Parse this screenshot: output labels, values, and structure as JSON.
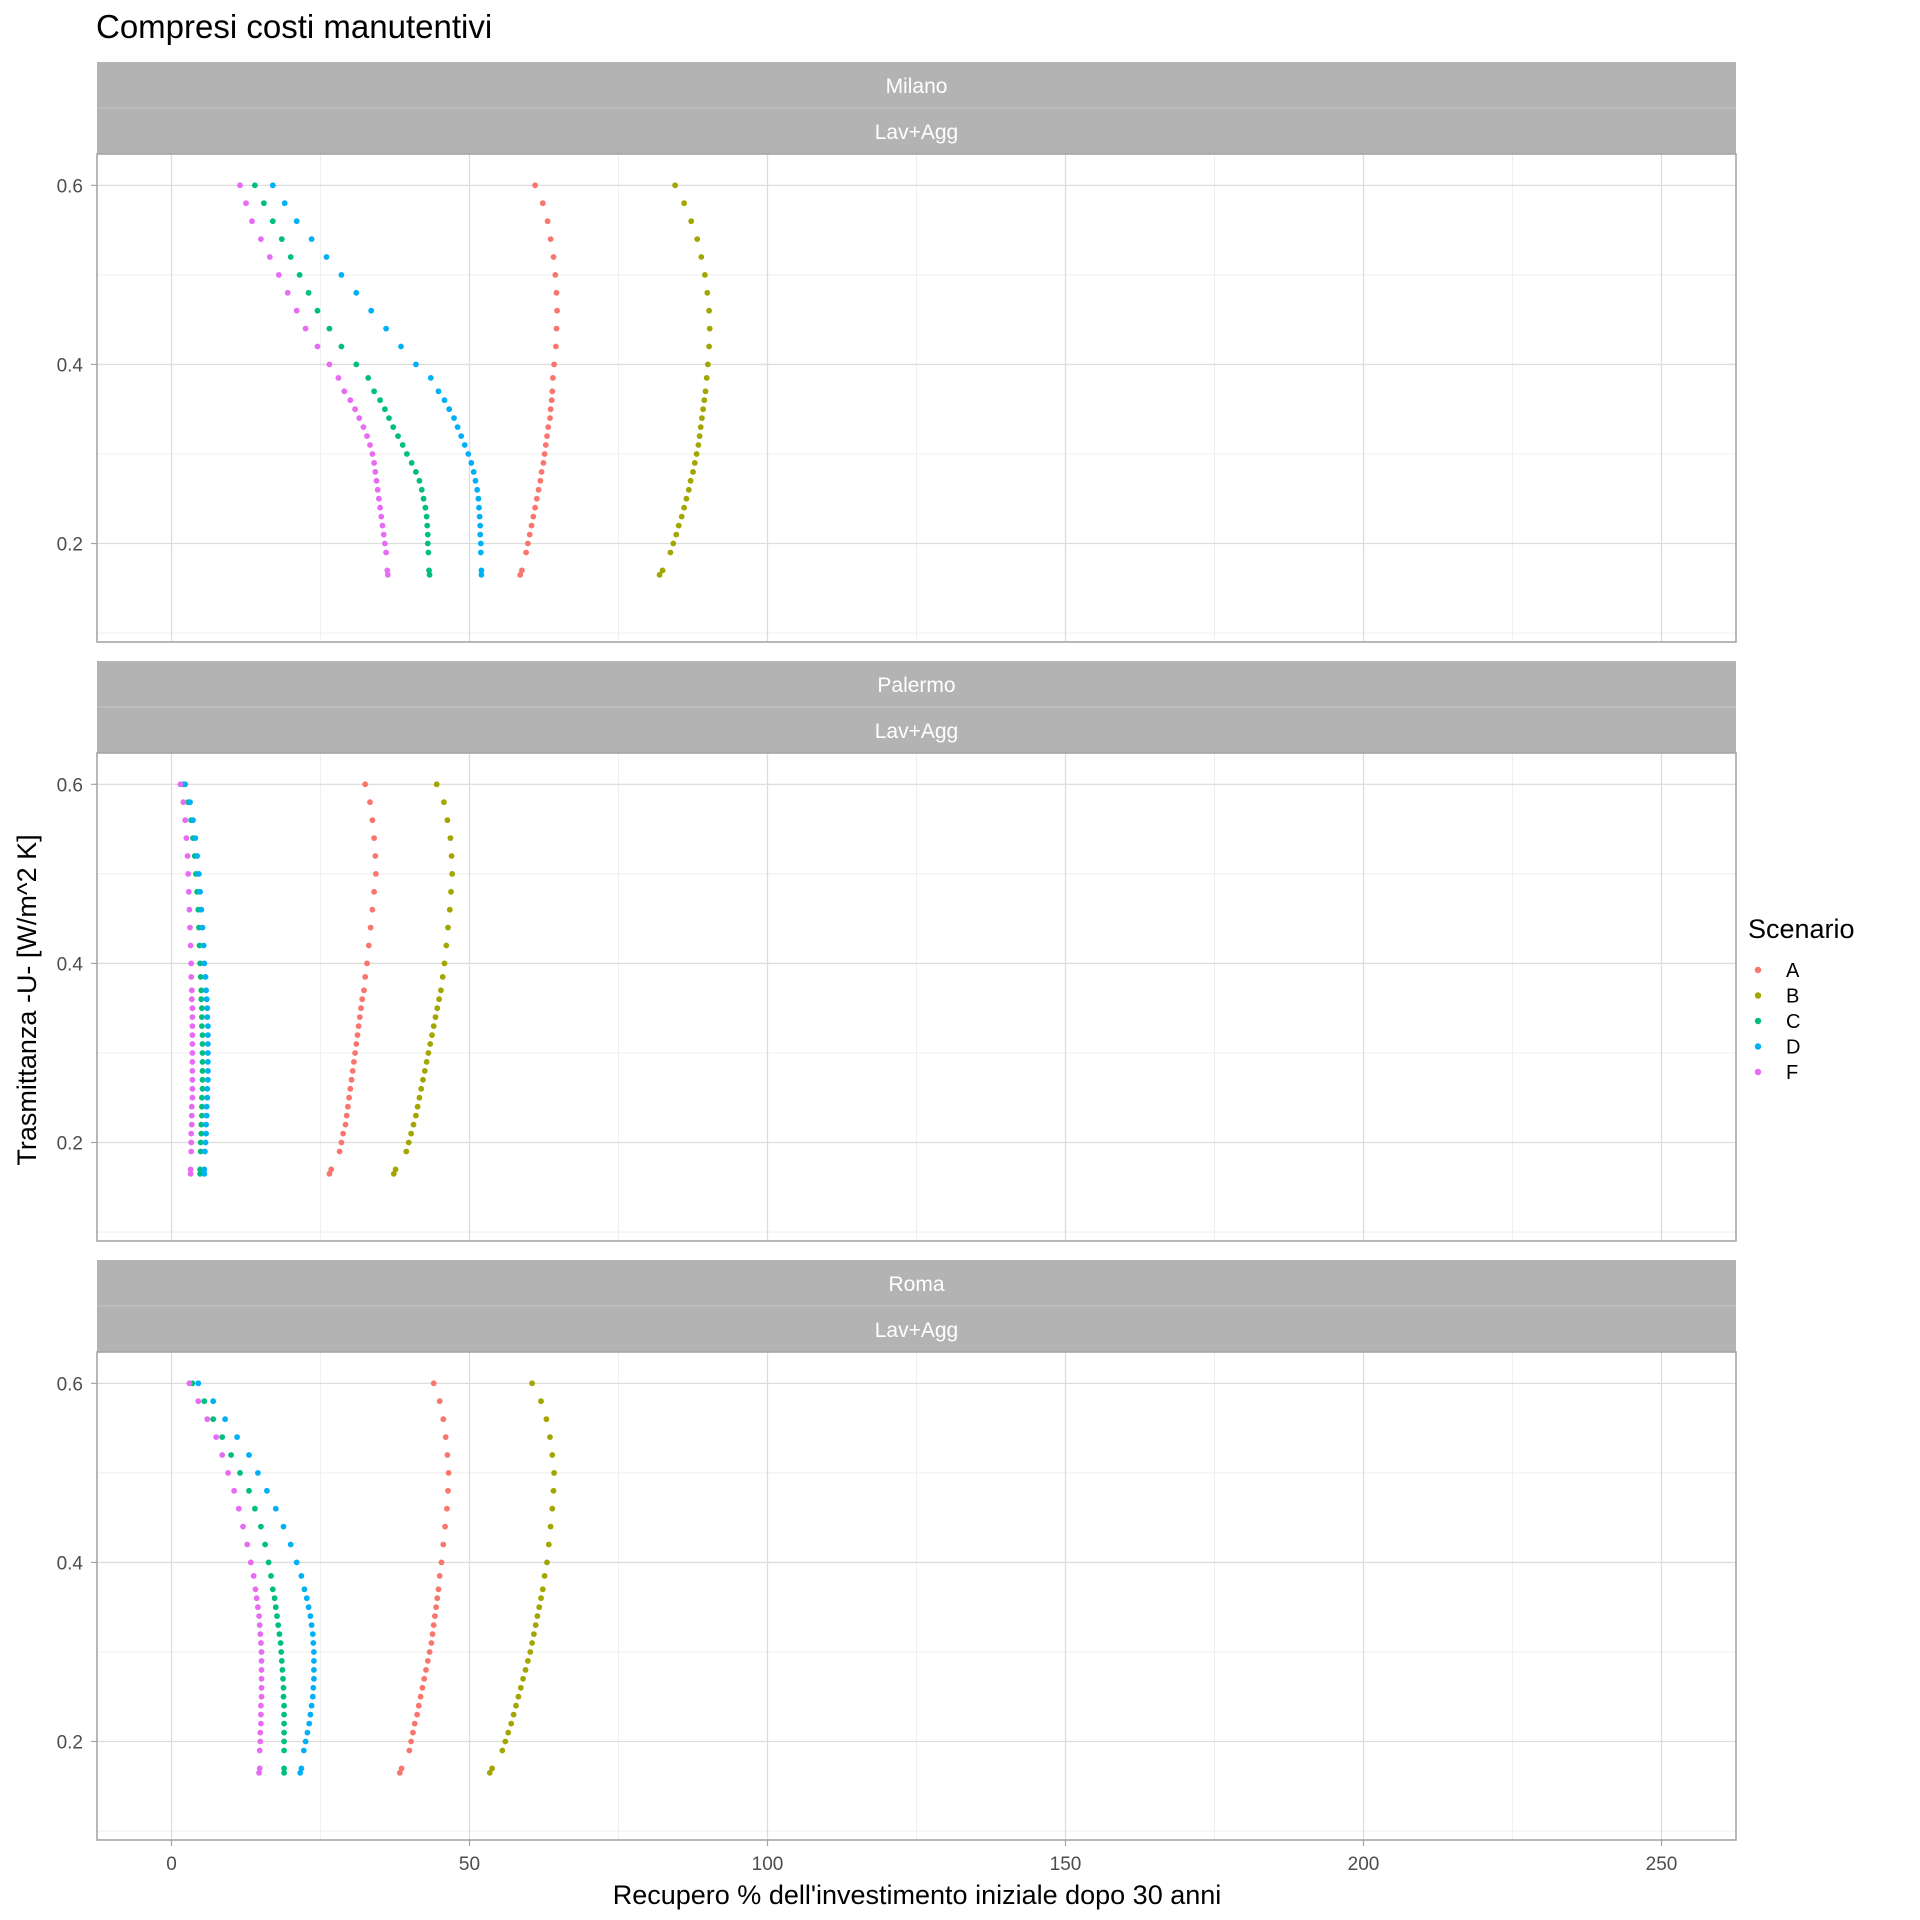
{
  "chart_data": {
    "type": "scatter",
    "title": "Compresi costi manutentivi",
    "xlabel": "Recupero % dell'investimento iniziale dopo 30 anni",
    "ylabel": "Trasmittanza -U- [W/m^2 K]",
    "xlim": [
      -12.5,
      262.5
    ],
    "ylim": [
      0.09,
      0.635
    ],
    "x_ticks": [
      0,
      50,
      100,
      150,
      200,
      250
    ],
    "x_tick_labels": [
      "0",
      "50",
      "100",
      "150",
      "200",
      "250"
    ],
    "y_ticks": [
      0.2,
      0.4,
      0.6
    ],
    "y_tick_labels": [
      "0.2",
      "0.4",
      "0.6"
    ],
    "grid": true,
    "facet_row_label": "Lav+Agg",
    "legend": {
      "title": "Scenario",
      "position": "right",
      "entries": [
        {
          "label": "A",
          "color": "#F8766D"
        },
        {
          "label": "B",
          "color": "#A3A500"
        },
        {
          "label": "C",
          "color": "#00BF7D"
        },
        {
          "label": "D",
          "color": "#00B0F6"
        },
        {
          "label": "F",
          "color": "#E76BF3"
        }
      ]
    },
    "u_values": [
      0.6,
      0.58,
      0.56,
      0.54,
      0.52,
      0.5,
      0.48,
      0.46,
      0.44,
      0.42,
      0.4,
      0.385,
      0.37,
      0.36,
      0.35,
      0.34,
      0.33,
      0.32,
      0.31,
      0.3,
      0.29,
      0.28,
      0.27,
      0.26,
      0.25,
      0.24,
      0.23,
      0.22,
      0.21,
      0.2,
      0.19,
      0.17,
      0.165
    ],
    "panels": [
      {
        "name": "Milano",
        "sub": "Lav+Agg",
        "series": [
          {
            "name": "A",
            "x": [
              61.0,
              62.3,
              63.1,
              63.6,
              64.1,
              64.4,
              64.6,
              64.7,
              64.6,
              64.5,
              64.2,
              64.0,
              63.9,
              63.8,
              63.6,
              63.5,
              63.2,
              63.0,
              62.8,
              62.6,
              62.4,
              62.1,
              61.9,
              61.6,
              61.3,
              61.0,
              60.7,
              60.4,
              60.1,
              59.8,
              59.5,
              58.8,
              58.5
            ]
          },
          {
            "name": "B",
            "x": [
              84.5,
              86.0,
              87.2,
              88.2,
              88.9,
              89.5,
              89.9,
              90.2,
              90.3,
              90.2,
              90.0,
              89.8,
              89.6,
              89.4,
              89.2,
              89.0,
              88.8,
              88.6,
              88.4,
              88.1,
              87.8,
              87.5,
              87.1,
              86.8,
              86.4,
              86.0,
              85.6,
              85.1,
              84.7,
              84.2,
              83.7,
              82.4,
              81.9
            ]
          },
          {
            "name": "C",
            "x": [
              14.0,
              15.5,
              17.0,
              18.5,
              20.0,
              21.5,
              23.0,
              24.5,
              26.5,
              28.5,
              31.0,
              33.0,
              34.0,
              35.0,
              35.8,
              36.5,
              37.2,
              38.0,
              38.8,
              39.5,
              40.3,
              41.0,
              41.6,
              42.0,
              42.3,
              42.6,
              42.8,
              42.9,
              43.0,
              43.0,
              43.1,
              43.2,
              43.3
            ]
          },
          {
            "name": "D",
            "x": [
              17.0,
              19.0,
              21.0,
              23.5,
              26.0,
              28.5,
              31.0,
              33.5,
              36.0,
              38.5,
              41.0,
              43.5,
              44.8,
              45.8,
              46.6,
              47.4,
              48.0,
              48.6,
              49.2,
              49.8,
              50.3,
              50.7,
              51.0,
              51.3,
              51.5,
              51.6,
              51.7,
              51.8,
              51.8,
              51.9,
              51.9,
              52.0,
              52.0
            ]
          },
          {
            "name": "F",
            "x": [
              11.5,
              12.5,
              13.5,
              15.0,
              16.5,
              18.0,
              19.5,
              21.0,
              22.5,
              24.5,
              26.5,
              28.0,
              29.0,
              30.0,
              30.8,
              31.5,
              32.2,
              32.8,
              33.3,
              33.7,
              34.0,
              34.2,
              34.4,
              34.6,
              34.8,
              35.0,
              35.2,
              35.4,
              35.6,
              35.8,
              36.0,
              36.2,
              36.3
            ]
          }
        ]
      },
      {
        "name": "Palermo",
        "sub": "Lav+Agg",
        "series": [
          {
            "name": "A",
            "x": [
              32.5,
              33.3,
              33.7,
              34.0,
              34.2,
              34.3,
              34.0,
              33.7,
              33.4,
              33.1,
              32.8,
              32.5,
              32.3,
              32.0,
              31.8,
              31.6,
              31.4,
              31.2,
              31.0,
              30.8,
              30.6,
              30.4,
              30.2,
              30.0,
              29.8,
              29.6,
              29.4,
              29.2,
              28.8,
              28.5,
              28.2,
              26.8,
              26.5
            ]
          },
          {
            "name": "B",
            "x": [
              44.5,
              45.7,
              46.3,
              46.8,
              47.0,
              47.1,
              46.9,
              46.7,
              46.4,
              46.1,
              45.8,
              45.5,
              45.2,
              44.9,
              44.6,
              44.3,
              44.0,
              43.7,
              43.4,
              43.1,
              42.8,
              42.5,
              42.2,
              41.9,
              41.6,
              41.3,
              41.0,
              40.6,
              40.2,
              39.8,
              39.4,
              37.6,
              37.3
            ]
          },
          {
            "name": "C",
            "x": [
              2.0,
              2.8,
              3.3,
              3.6,
              3.9,
              4.1,
              4.3,
              4.5,
              4.6,
              4.7,
              4.8,
              4.9,
              5.0,
              5.0,
              5.1,
              5.1,
              5.1,
              5.2,
              5.2,
              5.2,
              5.2,
              5.2,
              5.2,
              5.2,
              5.1,
              5.1,
              5.1,
              5.0,
              5.0,
              4.9,
              4.9,
              4.8,
              4.8
            ]
          },
          {
            "name": "D",
            "x": [
              2.3,
              3.1,
              3.6,
              4.0,
              4.3,
              4.6,
              4.8,
              5.0,
              5.2,
              5.4,
              5.5,
              5.7,
              5.8,
              5.9,
              6.0,
              6.0,
              6.1,
              6.1,
              6.1,
              6.1,
              6.1,
              6.1,
              6.1,
              6.0,
              6.0,
              5.9,
              5.9,
              5.8,
              5.8,
              5.7,
              5.6,
              5.5,
              5.5
            ]
          },
          {
            "name": "F",
            "x": [
              1.5,
              2.0,
              2.3,
              2.5,
              2.7,
              2.8,
              2.9,
              3.0,
              3.1,
              3.2,
              3.3,
              3.3,
              3.4,
              3.4,
              3.5,
              3.5,
              3.5,
              3.5,
              3.5,
              3.5,
              3.5,
              3.5,
              3.5,
              3.5,
              3.5,
              3.4,
              3.4,
              3.4,
              3.3,
              3.3,
              3.3,
              3.2,
              3.2
            ]
          }
        ]
      },
      {
        "name": "Roma",
        "sub": "Lav+Agg",
        "series": [
          {
            "name": "A",
            "x": [
              44.0,
              45.0,
              45.6,
              46.0,
              46.3,
              46.5,
              46.4,
              46.2,
              45.9,
              45.6,
              45.3,
              45.0,
              44.8,
              44.6,
              44.4,
              44.2,
              44.0,
              43.8,
              43.6,
              43.3,
              43.0,
              42.7,
              42.4,
              42.1,
              41.8,
              41.5,
              41.2,
              40.8,
              40.5,
              40.2,
              39.9,
              38.6,
              38.3
            ]
          },
          {
            "name": "B",
            "x": [
              60.5,
              62.0,
              62.9,
              63.5,
              63.9,
              64.2,
              64.1,
              63.9,
              63.6,
              63.3,
              63.0,
              62.6,
              62.3,
              62.0,
              61.7,
              61.4,
              61.1,
              60.8,
              60.5,
              60.2,
              59.8,
              59.4,
              59.0,
              58.6,
              58.2,
              57.8,
              57.4,
              57.0,
              56.5,
              56.0,
              55.5,
              53.8,
              53.4
            ]
          },
          {
            "name": "C",
            "x": [
              3.5,
              5.5,
              7.0,
              8.5,
              10.0,
              11.5,
              13.0,
              14.0,
              15.0,
              15.7,
              16.3,
              16.7,
              17.0,
              17.3,
              17.5,
              17.7,
              17.9,
              18.1,
              18.3,
              18.4,
              18.5,
              18.6,
              18.7,
              18.8,
              18.8,
              18.9,
              18.9,
              18.9,
              18.9,
              18.9,
              18.9,
              18.9,
              18.9
            ]
          },
          {
            "name": "D",
            "x": [
              4.5,
              7.0,
              9.0,
              11.0,
              13.0,
              14.5,
              16.0,
              17.5,
              18.8,
              20.0,
              21.0,
              21.8,
              22.3,
              22.7,
              23.0,
              23.3,
              23.5,
              23.7,
              23.8,
              23.9,
              23.9,
              23.9,
              23.9,
              23.8,
              23.7,
              23.5,
              23.3,
              23.1,
              22.8,
              22.5,
              22.2,
              21.8,
              21.6
            ]
          },
          {
            "name": "F",
            "x": [
              3.0,
              4.5,
              6.0,
              7.5,
              8.5,
              9.5,
              10.5,
              11.3,
              12.0,
              12.7,
              13.3,
              13.8,
              14.1,
              14.3,
              14.5,
              14.7,
              14.8,
              14.9,
              15.0,
              15.1,
              15.1,
              15.1,
              15.1,
              15.1,
              15.1,
              15.0,
              15.0,
              15.0,
              14.9,
              14.9,
              14.8,
              14.8,
              14.7
            ]
          }
        ]
      }
    ]
  }
}
